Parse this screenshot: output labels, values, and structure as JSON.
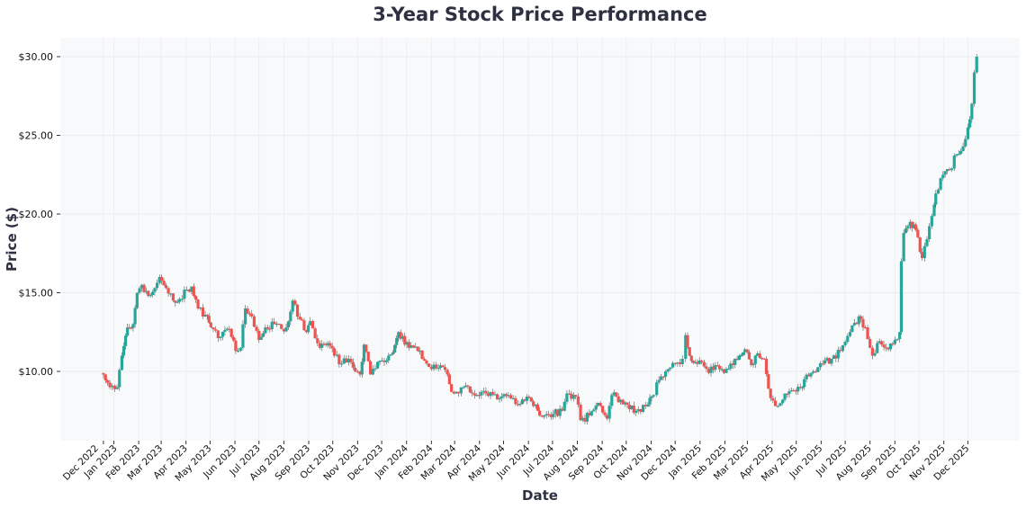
{
  "chart_data": {
    "type": "candlestick",
    "title": "3-Year Stock Price Performance",
    "xlabel": "Date",
    "ylabel": "Price ($)",
    "ylim": [
      5.6,
      31.2
    ],
    "y_ticks": [
      {
        "value": 10,
        "label": "$10.00"
      },
      {
        "value": 15,
        "label": "$15.00"
      },
      {
        "value": 20,
        "label": "$20.00"
      },
      {
        "value": 25,
        "label": "$25.00"
      },
      {
        "value": 30,
        "label": "$30.00"
      }
    ],
    "x_ticks": [
      {
        "date": "2022-12-19",
        "label": "Dec 2022"
      },
      {
        "date": "2023-01-01",
        "label": "Jan 2023"
      },
      {
        "date": "2023-02-01",
        "label": "Feb 2023"
      },
      {
        "date": "2023-03-01",
        "label": "Mar 2023"
      },
      {
        "date": "2023-04-01",
        "label": "Apr 2023"
      },
      {
        "date": "2023-05-01",
        "label": "May 2023"
      },
      {
        "date": "2023-06-01",
        "label": "Jun 2023"
      },
      {
        "date": "2023-07-01",
        "label": "Jul 2023"
      },
      {
        "date": "2023-08-01",
        "label": "Aug 2023"
      },
      {
        "date": "2023-09-01",
        "label": "Sep 2023"
      },
      {
        "date": "2023-10-01",
        "label": "Oct 2023"
      },
      {
        "date": "2023-11-01",
        "label": "Nov 2023"
      },
      {
        "date": "2023-12-01",
        "label": "Dec 2023"
      },
      {
        "date": "2024-01-01",
        "label": "Jan 2024"
      },
      {
        "date": "2024-02-01",
        "label": "Feb 2024"
      },
      {
        "date": "2024-03-01",
        "label": "Mar 2024"
      },
      {
        "date": "2024-04-01",
        "label": "Apr 2024"
      },
      {
        "date": "2024-05-01",
        "label": "May 2024"
      },
      {
        "date": "2024-06-01",
        "label": "Jun 2024"
      },
      {
        "date": "2024-07-01",
        "label": "Jul 2024"
      },
      {
        "date": "2024-08-01",
        "label": "Aug 2024"
      },
      {
        "date": "2024-09-01",
        "label": "Sep 2024"
      },
      {
        "date": "2024-10-01",
        "label": "Oct 2024"
      },
      {
        "date": "2024-11-01",
        "label": "Nov 2024"
      },
      {
        "date": "2024-12-01",
        "label": "Dec 2024"
      },
      {
        "date": "2025-01-01",
        "label": "Jan 2025"
      },
      {
        "date": "2025-02-01",
        "label": "Feb 2025"
      },
      {
        "date": "2025-03-01",
        "label": "Mar 2025"
      },
      {
        "date": "2025-04-01",
        "label": "Apr 2025"
      },
      {
        "date": "2025-05-01",
        "label": "May 2025"
      },
      {
        "date": "2025-06-01",
        "label": "Jun 2025"
      },
      {
        "date": "2025-07-01",
        "label": "Jul 2025"
      },
      {
        "date": "2025-08-01",
        "label": "Aug 2025"
      },
      {
        "date": "2025-09-01",
        "label": "Sep 2025"
      },
      {
        "date": "2025-10-01",
        "label": "Oct 2025"
      },
      {
        "date": "2025-11-01",
        "label": "Nov 2025"
      },
      {
        "date": "2025-12-01",
        "label": "Dec 2025"
      }
    ],
    "grid": true,
    "colors": {
      "up": "#26a69a",
      "down": "#ef5350",
      "plot_background": "#f8f9fa"
    },
    "close_series": [
      [
        "2022-12-19",
        9.8
      ],
      [
        "2022-12-27",
        9.0
      ],
      [
        "2023-01-05",
        9.0
      ],
      [
        "2023-01-11",
        11.0
      ],
      [
        "2023-01-18",
        12.8
      ],
      [
        "2023-01-25",
        13.0
      ],
      [
        "2023-01-30",
        15.0
      ],
      [
        "2023-02-05",
        15.5
      ],
      [
        "2023-02-13",
        14.8
      ],
      [
        "2023-02-21",
        15.3
      ],
      [
        "2023-02-27",
        16.0
      ],
      [
        "2023-03-07",
        15.3
      ],
      [
        "2023-03-16",
        14.5
      ],
      [
        "2023-03-24",
        14.6
      ],
      [
        "2023-04-02",
        15.2
      ],
      [
        "2023-04-08",
        15.4
      ],
      [
        "2023-04-16",
        14.0
      ],
      [
        "2023-04-25",
        13.6
      ],
      [
        "2023-05-02",
        12.8
      ],
      [
        "2023-05-14",
        12.2
      ],
      [
        "2023-05-25",
        12.7
      ],
      [
        "2023-06-02",
        11.3
      ],
      [
        "2023-06-08",
        11.5
      ],
      [
        "2023-06-14",
        14.0
      ],
      [
        "2023-06-22",
        13.5
      ],
      [
        "2023-07-01",
        12.0
      ],
      [
        "2023-07-09",
        12.8
      ],
      [
        "2023-07-20",
        13.0
      ],
      [
        "2023-07-29",
        12.7
      ],
      [
        "2023-08-04",
        12.8
      ],
      [
        "2023-08-12",
        14.5
      ],
      [
        "2023-08-21",
        13.3
      ],
      [
        "2023-08-29",
        12.5
      ],
      [
        "2023-09-03",
        13.2
      ],
      [
        "2023-09-15",
        11.5
      ],
      [
        "2023-09-25",
        11.8
      ],
      [
        "2023-10-03",
        11.0
      ],
      [
        "2023-10-12",
        10.5
      ],
      [
        "2023-10-21",
        10.8
      ],
      [
        "2023-10-29",
        10.0
      ],
      [
        "2023-11-04",
        9.8
      ],
      [
        "2023-11-09",
        11.7
      ],
      [
        "2023-11-17",
        9.8
      ],
      [
        "2023-11-26",
        10.6
      ],
      [
        "2023-12-07",
        10.7
      ],
      [
        "2023-12-15",
        11.2
      ],
      [
        "2023-12-22",
        12.5
      ],
      [
        "2024-01-04",
        11.5
      ],
      [
        "2024-01-15",
        11.3
      ],
      [
        "2024-01-26",
        10.5
      ],
      [
        "2024-02-07",
        10.2
      ],
      [
        "2024-02-18",
        10.1
      ],
      [
        "2024-02-21",
        9.8
      ],
      [
        "2024-02-26",
        8.7
      ],
      [
        "2024-03-06",
        8.6
      ],
      [
        "2024-03-12",
        9.0
      ],
      [
        "2024-03-23",
        8.6
      ],
      [
        "2024-04-09",
        8.6
      ],
      [
        "2024-04-26",
        8.3
      ],
      [
        "2024-05-07",
        8.5
      ],
      [
        "2024-05-19",
        7.9
      ],
      [
        "2024-05-30",
        8.4
      ],
      [
        "2024-06-10",
        7.9
      ],
      [
        "2024-06-15",
        7.2
      ],
      [
        "2024-07-02",
        7.3
      ],
      [
        "2024-07-13",
        7.5
      ],
      [
        "2024-07-19",
        8.6
      ],
      [
        "2024-07-30",
        8.4
      ],
      [
        "2024-08-05",
        6.9
      ],
      [
        "2024-08-16",
        7.2
      ],
      [
        "2024-08-27",
        8.0
      ],
      [
        "2024-09-07",
        7.0
      ],
      [
        "2024-09-13",
        8.5
      ],
      [
        "2024-09-24",
        8.2
      ],
      [
        "2024-10-05",
        7.6
      ],
      [
        "2024-10-16",
        7.6
      ],
      [
        "2024-10-28",
        7.9
      ],
      [
        "2024-11-04",
        8.5
      ],
      [
        "2024-11-08",
        9.3
      ],
      [
        "2024-11-19",
        10.0
      ],
      [
        "2024-12-01",
        10.5
      ],
      [
        "2024-12-10",
        10.8
      ],
      [
        "2024-12-14",
        12.3
      ],
      [
        "2024-12-19",
        11.0
      ],
      [
        "2024-12-26",
        10.6
      ],
      [
        "2025-01-03",
        10.6
      ],
      [
        "2025-01-12",
        9.9
      ],
      [
        "2025-01-20",
        10.4
      ],
      [
        "2025-01-31",
        9.9
      ],
      [
        "2025-02-11",
        10.4
      ],
      [
        "2025-02-19",
        11.0
      ],
      [
        "2025-02-26",
        11.4
      ],
      [
        "2025-03-06",
        10.4
      ],
      [
        "2025-03-11",
        11.0
      ],
      [
        "2025-03-22",
        10.8
      ],
      [
        "2025-03-30",
        8.3
      ],
      [
        "2025-04-05",
        7.8
      ],
      [
        "2025-04-14",
        8.2
      ],
      [
        "2025-04-25",
        8.8
      ],
      [
        "2025-05-06",
        9.0
      ],
      [
        "2025-05-11",
        9.5
      ],
      [
        "2025-05-22",
        10.0
      ],
      [
        "2025-06-03",
        10.5
      ],
      [
        "2025-06-14",
        10.8
      ],
      [
        "2025-06-25",
        11.3
      ],
      [
        "2025-07-07",
        12.5
      ],
      [
        "2025-07-18",
        13.5
      ],
      [
        "2025-07-26",
        12.8
      ],
      [
        "2025-08-04",
        11.0
      ],
      [
        "2025-08-10",
        11.8
      ],
      [
        "2025-08-21",
        11.5
      ],
      [
        "2025-09-01",
        12.0
      ],
      [
        "2025-09-07",
        12.5
      ],
      [
        "2025-09-09",
        17.0
      ],
      [
        "2025-09-12",
        18.8
      ],
      [
        "2025-09-20",
        19.5
      ],
      [
        "2025-09-27",
        19.0
      ],
      [
        "2025-10-05",
        17.2
      ],
      [
        "2025-10-11",
        18.4
      ],
      [
        "2025-10-20",
        20.6
      ],
      [
        "2025-10-22",
        21.3
      ],
      [
        "2025-10-31",
        22.5
      ],
      [
        "2025-11-08",
        22.8
      ],
      [
        "2025-11-17",
        23.8
      ],
      [
        "2025-11-25",
        24.3
      ],
      [
        "2025-12-01",
        25.5
      ],
      [
        "2025-12-06",
        27.0
      ],
      [
        "2025-12-09",
        29.0
      ],
      [
        "2025-12-12",
        30.0
      ]
    ]
  }
}
